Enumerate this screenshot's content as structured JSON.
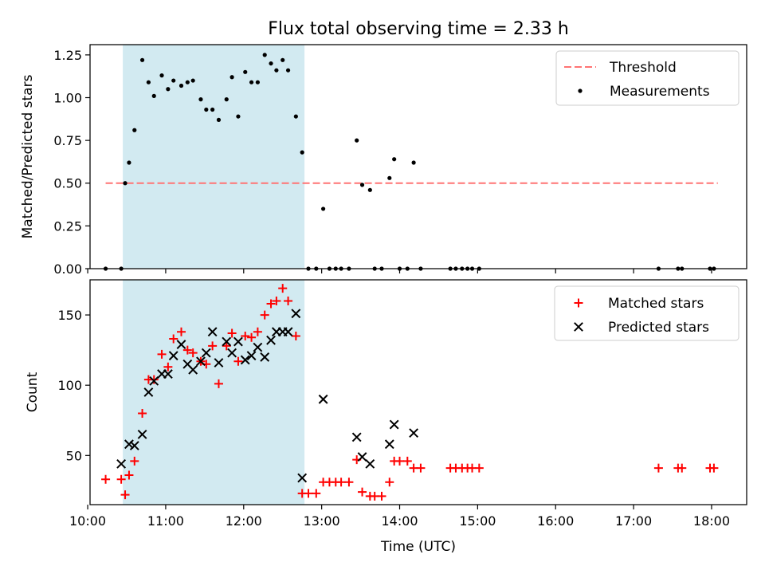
{
  "title": "Flux total observing time = 2.33 h",
  "chart_data": [
    {
      "type": "scatter",
      "panel": "top",
      "ylabel": "Matched/Predicted stars",
      "xlabel": "",
      "xlim": [
        10.03,
        18.45
      ],
      "ylim": [
        0.0,
        1.31
      ],
      "yticks": [
        0.0,
        0.25,
        0.5,
        0.75,
        1.0,
        1.25
      ],
      "ytick_labels": [
        "0.00",
        "0.25",
        "0.50",
        "0.75",
        "1.00",
        "1.25"
      ],
      "shaded_interval": [
        10.45,
        12.78
      ],
      "shade_color": "#add8e6",
      "legend": {
        "position": "top-right",
        "entries": [
          "Threshold",
          "Measurements"
        ]
      },
      "threshold": {
        "name": "Threshold",
        "x": [
          10.23,
          18.08
        ],
        "y": 0.5,
        "color": "#ff7373",
        "style": "dashed"
      },
      "series": [
        {
          "name": "Measurements",
          "color": "#000000",
          "x": [
            10.23,
            10.43,
            10.48,
            10.53,
            10.6,
            10.7,
            10.78,
            10.85,
            10.95,
            11.03,
            11.1,
            11.2,
            11.28,
            11.35,
            11.45,
            11.52,
            11.6,
            11.68,
            11.78,
            11.85,
            11.93,
            12.02,
            12.1,
            12.18,
            12.27,
            12.35,
            12.42,
            12.5,
            12.57,
            12.67,
            12.75,
            12.83,
            12.93,
            13.02,
            13.1,
            13.18,
            13.25,
            13.35,
            13.45,
            13.52,
            13.62,
            13.68,
            13.77,
            13.87,
            13.93,
            14.0,
            14.1,
            14.18,
            14.27,
            14.65,
            14.72,
            14.8,
            14.87,
            14.93,
            15.02,
            17.32,
            17.57,
            17.62,
            17.98,
            18.03
          ],
          "y": [
            0.0,
            0.0,
            0.5,
            0.62,
            0.81,
            1.22,
            1.09,
            1.01,
            1.13,
            1.05,
            1.1,
            1.07,
            1.09,
            1.1,
            0.99,
            0.93,
            0.93,
            0.87,
            0.99,
            1.12,
            0.89,
            1.15,
            1.09,
            1.09,
            1.25,
            1.2,
            1.16,
            1.22,
            1.16,
            0.89,
            0.68,
            0.0,
            0.0,
            0.35,
            0.0,
            0.0,
            0.0,
            0.0,
            0.75,
            0.49,
            0.46,
            0.0,
            0.0,
            0.53,
            0.64,
            0.0,
            0.0,
            0.62,
            0.0,
            0.0,
            0.0,
            0.0,
            0.0,
            0.0,
            0.0,
            0.0,
            0.0,
            0.0,
            0.0,
            0.0
          ]
        }
      ]
    },
    {
      "type": "scatter",
      "panel": "bottom",
      "ylabel": "Count",
      "xlabel": "Time (UTC)",
      "xlim": [
        10.03,
        18.45
      ],
      "ylim": [
        15,
        175
      ],
      "yticks": [
        50,
        100,
        150
      ],
      "ytick_labels": [
        "50",
        "100",
        "150"
      ],
      "xticks": [
        10,
        11,
        12,
        13,
        14,
        15,
        16,
        17,
        18
      ],
      "xtick_labels": [
        "10:00",
        "11:00",
        "12:00",
        "13:00",
        "14:00",
        "15:00",
        "16:00",
        "17:00",
        "18:00"
      ],
      "shaded_interval": [
        10.45,
        12.78
      ],
      "shade_color": "#add8e6",
      "legend": {
        "position": "top-right",
        "entries": [
          "Matched stars",
          "Predicted stars"
        ]
      },
      "series": [
        {
          "name": "Matched stars",
          "marker": "plus",
          "color": "#ff0000",
          "x": [
            10.23,
            10.43,
            10.48,
            10.53,
            10.6,
            10.7,
            10.78,
            10.85,
            10.95,
            11.03,
            11.1,
            11.2,
            11.28,
            11.35,
            11.45,
            11.52,
            11.6,
            11.68,
            11.78,
            11.85,
            11.93,
            12.02,
            12.1,
            12.18,
            12.27,
            12.35,
            12.42,
            12.5,
            12.57,
            12.67,
            12.75,
            12.83,
            12.93,
            13.02,
            13.1,
            13.18,
            13.25,
            13.35,
            13.45,
            13.52,
            13.62,
            13.68,
            13.77,
            13.87,
            13.93,
            14.0,
            14.1,
            14.18,
            14.27,
            14.65,
            14.72,
            14.8,
            14.87,
            14.93,
            15.02,
            17.32,
            17.57,
            17.62,
            17.98,
            18.03
          ],
          "y": [
            33,
            33,
            22,
            36,
            46,
            80,
            104,
            104,
            122,
            113,
            133,
            138,
            125,
            123,
            117,
            115,
            128,
            101,
            128,
            137,
            117,
            135,
            134,
            138,
            150,
            158,
            160,
            169,
            160,
            135,
            23,
            23,
            23,
            31,
            31,
            31,
            31,
            31,
            47,
            24,
            21,
            21,
            21,
            31,
            46,
            46,
            46,
            41,
            41,
            41,
            41,
            41,
            41,
            41,
            41,
            41,
            41,
            41,
            41,
            41
          ]
        },
        {
          "name": "Predicted stars",
          "marker": "x",
          "color": "#000000",
          "x": [
            10.43,
            10.53,
            10.6,
            10.7,
            10.78,
            10.85,
            10.95,
            11.03,
            11.1,
            11.2,
            11.28,
            11.35,
            11.45,
            11.52,
            11.6,
            11.68,
            11.78,
            11.85,
            11.93,
            12.02,
            12.1,
            12.18,
            12.27,
            12.35,
            12.42,
            12.5,
            12.57,
            12.67,
            12.75,
            13.02,
            13.45,
            13.52,
            13.62,
            13.87,
            13.93,
            14.18
          ],
          "y": [
            44,
            58,
            57,
            65,
            95,
            103,
            108,
            108,
            121,
            129,
            115,
            111,
            117,
            123,
            138,
            116,
            131,
            123,
            131,
            118,
            121,
            127,
            120,
            132,
            138,
            138,
            138,
            151,
            34,
            90,
            63,
            49,
            44,
            58,
            72,
            66
          ]
        }
      ]
    }
  ]
}
